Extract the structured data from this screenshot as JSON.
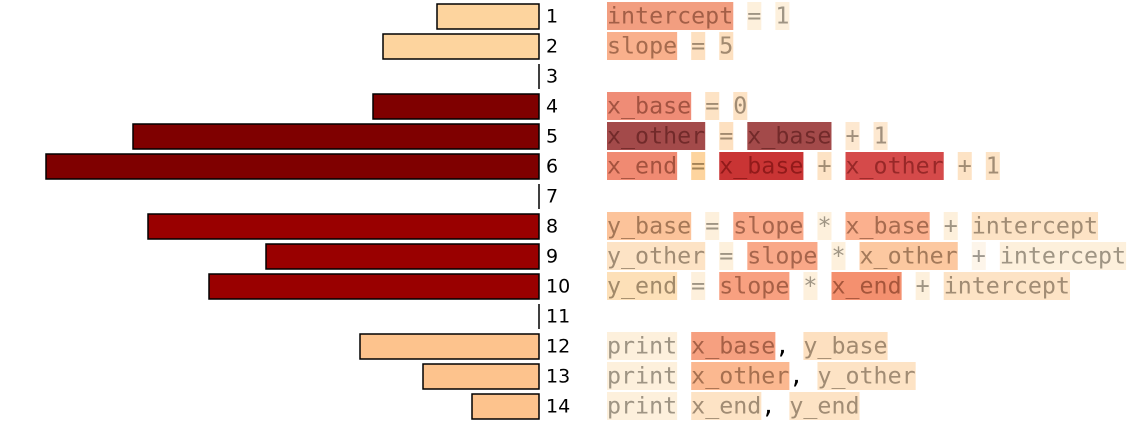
{
  "chart_data": {
    "type": "bar",
    "categories": [
      "1",
      "2",
      "3",
      "4",
      "5",
      "6",
      "7",
      "8",
      "9",
      "10",
      "11",
      "12",
      "13",
      "14"
    ],
    "values": [
      102,
      156,
      0,
      166,
      406,
      493,
      0,
      391,
      273,
      330,
      0,
      179,
      116,
      67
    ],
    "colors": [
      "#fdd49e",
      "#fdd49e",
      "#fdd49e",
      "#7f0000",
      "#7f0000",
      "#7f0000",
      "#7f0000",
      "#990000",
      "#990000",
      "#990000",
      "#990000",
      "#fdc38d",
      "#fdc38d",
      "#fdc38d"
    ],
    "orientation": "horizontal-left"
  },
  "code": {
    "lines": [
      {
        "tokens": [
          {
            "text": "intercept",
            "bg": "#f29e80"
          },
          {
            "text": "=",
            "bg": "#fdf0dc"
          },
          {
            "text": "1",
            "bg": "#fdf0dc"
          }
        ]
      },
      {
        "tokens": [
          {
            "text": "slope",
            "bg": "#f9b08c"
          },
          {
            "text": "=",
            "bg": "#fde0c0"
          },
          {
            "text": "5",
            "bg": "#fde0c0"
          }
        ]
      },
      {
        "tokens": []
      },
      {
        "tokens": [
          {
            "text": "x_base",
            "bg": "#ef8c76"
          },
          {
            "text": "=",
            "bg": "#fde3c5"
          },
          {
            "text": "0",
            "bg": "#fde3c5"
          }
        ]
      },
      {
        "tokens": [
          {
            "text": "x_other",
            "bg": "#a34a4a"
          },
          {
            "text": "=",
            "bg": "#fde0c0"
          },
          {
            "text": "x_base",
            "bg": "#a34a4a"
          },
          {
            "text": "+",
            "bg": "#fde8d0"
          },
          {
            "text": "1",
            "bg": "#fde8d0"
          }
        ]
      },
      {
        "tokens": [
          {
            "text": "x_end",
            "bg": "#f08a72"
          },
          {
            "text": "=",
            "bg": "#fdd49e"
          },
          {
            "text": "x_base",
            "bg": "#c93434"
          },
          {
            "text": "+",
            "bg": "#fde3c5"
          },
          {
            "text": "x_other",
            "bg": "#d54a4a"
          },
          {
            "text": "+",
            "bg": "#fde3c5"
          },
          {
            "text": "1",
            "bg": "#fde3c5"
          }
        ]
      },
      {
        "tokens": []
      },
      {
        "tokens": [
          {
            "text": "y_base",
            "bg": "#fcc39a"
          },
          {
            "text": "=",
            "bg": "#fdf0dc"
          },
          {
            "text": "slope",
            "bg": "#f9a888"
          },
          {
            "text": "*",
            "bg": "#fdf0dc"
          },
          {
            "text": "x_base",
            "bg": "#fbb08e"
          },
          {
            "text": "+",
            "bg": "#fdf0dc"
          },
          {
            "text": "intercept",
            "bg": "#fde3c5"
          }
        ]
      },
      {
        "tokens": [
          {
            "text": "y_other",
            "bg": "#fde3c5"
          },
          {
            "text": "=",
            "bg": "#fdf0dc"
          },
          {
            "text": "slope",
            "bg": "#f9a888"
          },
          {
            "text": "*",
            "bg": "#fdf0dc"
          },
          {
            "text": "x_other",
            "bg": "#fcc8a0"
          },
          {
            "text": "+",
            "bg": "#fdf5ea"
          },
          {
            "text": "intercept",
            "bg": "#fdf0dc"
          }
        ]
      },
      {
        "tokens": [
          {
            "text": "y_end",
            "bg": "#fde0b8"
          },
          {
            "text": "=",
            "bg": "#fdf0dc"
          },
          {
            "text": "slope",
            "bg": "#f8a080"
          },
          {
            "text": "*",
            "bg": "#fdf0dc"
          },
          {
            "text": "x_end",
            "bg": "#f4906f"
          },
          {
            "text": "+",
            "bg": "#fdf0dc"
          },
          {
            "text": "intercept",
            "bg": "#fde3c5"
          }
        ]
      },
      {
        "tokens": []
      },
      {
        "tokens": [
          {
            "text": "print",
            "bg": "#fdf0dc"
          },
          {
            "text": "x_base",
            "bg": "#f6a080"
          },
          {
            "text": ",",
            "color": "#000000"
          },
          {
            "text": "y_base",
            "bg": "#fde0c0"
          }
        ]
      },
      {
        "tokens": [
          {
            "text": "print",
            "bg": "#fdf0dc"
          },
          {
            "text": "x_other",
            "bg": "#fbb890"
          },
          {
            "text": ",",
            "color": "#000000"
          },
          {
            "text": "y_other",
            "bg": "#fde3c5"
          }
        ]
      },
      {
        "tokens": [
          {
            "text": "print",
            "bg": "#fdf0dc"
          },
          {
            "text": "x_end",
            "bg": "#fde3c5"
          },
          {
            "text": ",",
            "color": "#000000"
          },
          {
            "text": "y_end",
            "bg": "#fde3c5"
          }
        ]
      }
    ]
  }
}
